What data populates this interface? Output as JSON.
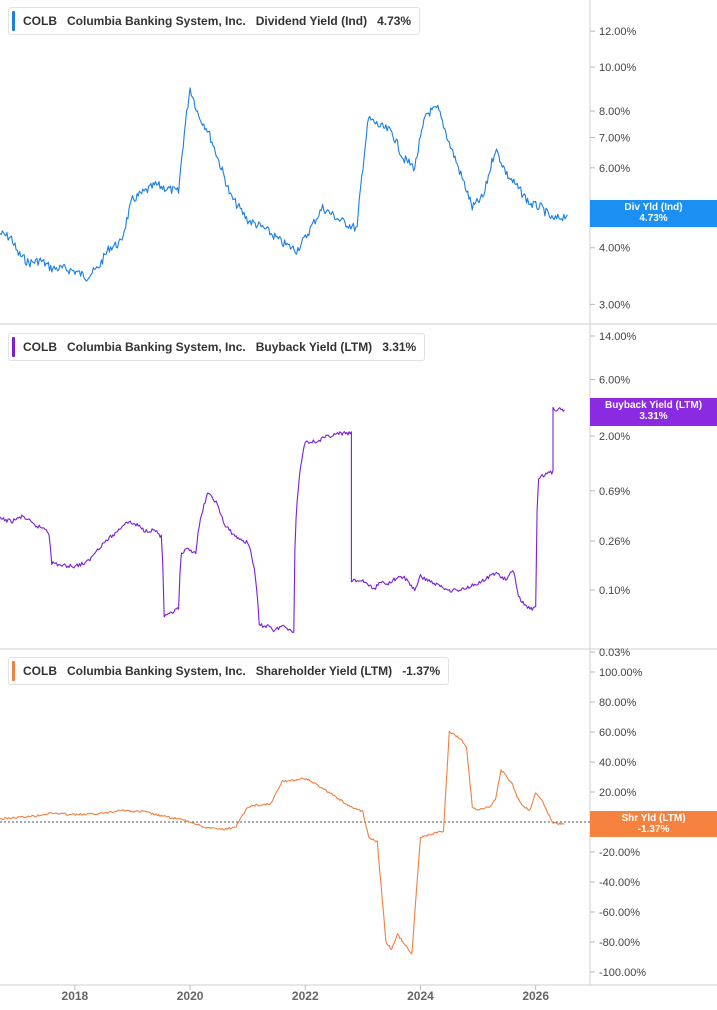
{
  "panels": [
    {
      "ticker": "COLB",
      "company": "Columbia Banking System, Inc.",
      "metric": "Dividend Yield (Ind)",
      "value": "4.73%",
      "tag_title": "Div Yld (Ind)",
      "tag_value": "4.73%",
      "color": "#1a7fe0",
      "tag_color": "#1b8ff2"
    },
    {
      "ticker": "COLB",
      "company": "Columbia Banking System, Inc.",
      "metric": "Buyback Yield (LTM)",
      "value": "3.31%",
      "tag_title": "Buyback Yield (LTM)",
      "tag_value": "3.31%",
      "color": "#7a1fd6",
      "tag_color": "#8a2be2"
    },
    {
      "ticker": "COLB",
      "company": "Columbia Banking System, Inc.",
      "metric": "Shareholder Yield (LTM)",
      "value": "-1.37%",
      "tag_title": "Shr Yld (LTM)",
      "tag_value": "-1.37%",
      "color": "#f08040",
      "tag_color": "#f5823f"
    }
  ],
  "chart_data": [
    {
      "type": "line",
      "title": "Dividend Yield (Ind)",
      "y_scale": "log",
      "ylim": [
        2.8,
        13.5
      ],
      "y_ticks": [
        "12.00%",
        "10.00%",
        "8.00%",
        "7.00%",
        "6.00%",
        "5.00%",
        "4.00%",
        "3.00%"
      ],
      "y_tick_values": [
        12,
        10,
        8,
        7,
        6,
        5,
        4,
        3
      ],
      "x": [
        2016.7,
        2016.9,
        2017.0,
        2017.2,
        2017.4,
        2017.6,
        2017.8,
        2018.0,
        2018.2,
        2018.4,
        2018.6,
        2018.8,
        2019.0,
        2019.2,
        2019.4,
        2019.6,
        2019.8,
        2020.0,
        2020.15,
        2020.3,
        2020.5,
        2020.7,
        2021.0,
        2021.3,
        2021.6,
        2021.85,
        2022.0,
        2022.3,
        2022.6,
        2022.9,
        2023.1,
        2023.3,
        2023.5,
        2023.7,
        2023.9,
        2024.1,
        2024.3,
        2024.5,
        2024.7,
        2024.9,
        2025.1,
        2025.3,
        2025.5,
        2025.7,
        2025.9,
        2026.1,
        2026.3,
        2026.55
      ],
      "y": [
        4.3,
        4.2,
        3.9,
        3.7,
        3.75,
        3.6,
        3.6,
        3.55,
        3.45,
        3.6,
        4.0,
        4.1,
        5.1,
        5.3,
        5.5,
        5.4,
        5.3,
        9.0,
        7.8,
        7.3,
        6.2,
        5.2,
        4.6,
        4.4,
        4.1,
        3.95,
        4.2,
        4.9,
        4.6,
        4.4,
        7.7,
        7.4,
        7.2,
        6.3,
        6.0,
        7.9,
        8.1,
        6.8,
        5.8,
        4.9,
        5.2,
        6.6,
        5.8,
        5.4,
        5.0,
        4.9,
        4.6,
        4.73
      ]
    },
    {
      "type": "line",
      "title": "Buyback Yield (LTM)",
      "y_scale": "log",
      "ylim": [
        0.03,
        14.0
      ],
      "y_ticks": [
        "14.00%",
        "6.00%",
        "2.00%",
        "0.69%",
        "0.26%",
        "0.10%",
        "0.03%"
      ],
      "y_tick_values": [
        14,
        6,
        2,
        0.69,
        0.26,
        0.1,
        0.03
      ],
      "x": [
        2016.7,
        2016.9,
        2017.1,
        2017.3,
        2017.5,
        2017.55,
        2017.6,
        2017.8,
        2018.0,
        2018.2,
        2018.3,
        2018.35,
        2018.5,
        2018.7,
        2018.9,
        2019.1,
        2019.2,
        2019.4,
        2019.5,
        2019.55,
        2019.6,
        2019.8,
        2019.85,
        2019.95,
        2020.1,
        2020.3,
        2020.4,
        2020.45,
        2020.6,
        2020.8,
        2021.0,
        2021.05,
        2021.2,
        2021.4,
        2021.45,
        2021.6,
        2021.8,
        2022.0,
        2022.2,
        2022.4,
        2022.6,
        2022.8,
        2022.8,
        2023.0,
        2023.2,
        2023.3,
        2023.4,
        2023.5,
        2023.7,
        2023.9,
        2024.0,
        2024.3,
        2024.5,
        2024.7,
        2024.9,
        2025.1,
        2025.3,
        2025.5,
        2025.6,
        2025.7,
        2025.8,
        2025.9,
        2026.0,
        2026.05,
        2026.3,
        2026.3,
        2026.5
      ],
      "y": [
        0.4,
        0.38,
        0.42,
        0.35,
        0.33,
        0.3,
        0.17,
        0.16,
        0.16,
        0.17,
        0.19,
        0.21,
        0.25,
        0.3,
        0.38,
        0.35,
        0.32,
        0.32,
        0.28,
        0.06,
        0.06,
        0.07,
        0.2,
        0.22,
        0.21,
        0.65,
        0.6,
        0.55,
        0.35,
        0.28,
        0.25,
        0.22,
        0.05,
        0.05,
        0.045,
        0.05,
        0.045,
        1.8,
        1.8,
        2.0,
        2.1,
        2.1,
        0.12,
        0.12,
        0.1,
        0.12,
        0.11,
        0.12,
        0.13,
        0.1,
        0.13,
        0.11,
        0.1,
        0.1,
        0.11,
        0.12,
        0.14,
        0.12,
        0.15,
        0.09,
        0.075,
        0.07,
        0.07,
        0.9,
        1.0,
        3.4,
        3.31
      ]
    },
    {
      "type": "line",
      "title": "Shareholder Yield (LTM)",
      "ylim": [
        -100,
        100
      ],
      "y_ticks": [
        "100.00%",
        "80.00%",
        "60.00%",
        "40.00%",
        "20.00%",
        "0.00%",
        "-20.00%",
        "-40.00%",
        "-60.00%",
        "-80.00%",
        "-100.00%"
      ],
      "y_tick_values": [
        100,
        80,
        60,
        40,
        20,
        0,
        -20,
        -40,
        -60,
        -80,
        -100
      ],
      "reference_line": 0,
      "x": [
        2016.7,
        2017.0,
        2017.3,
        2017.6,
        2017.9,
        2018.2,
        2018.5,
        2018.8,
        2019.0,
        2019.2,
        2019.5,
        2019.8,
        2020.0,
        2020.3,
        2020.6,
        2020.8,
        2021.0,
        2021.1,
        2021.4,
        2021.6,
        2021.8,
        2022.0,
        2022.2,
        2022.4,
        2022.6,
        2022.7,
        2022.8,
        2023.0,
        2023.1,
        2023.2,
        2023.25,
        2023.4,
        2023.5,
        2023.6,
        2023.7,
        2023.8,
        2023.85,
        2024.0,
        2024.2,
        2024.3,
        2024.4,
        2024.5,
        2024.6,
        2024.7,
        2024.8,
        2024.9,
        2025.0,
        2025.2,
        2025.3,
        2025.4,
        2025.5,
        2025.6,
        2025.7,
        2025.8,
        2025.9,
        2026.0,
        2026.1,
        2026.3,
        2026.5
      ],
      "y": [
        2,
        3,
        4,
        6,
        5,
        5,
        6,
        8,
        7,
        7,
        4,
        2,
        0,
        -4,
        -5,
        -3,
        10,
        11,
        12,
        27,
        28,
        29,
        25,
        20,
        15,
        12,
        10,
        7,
        -10,
        -12,
        -13,
        -80,
        -85,
        -75,
        -80,
        -85,
        -88,
        -10,
        -8,
        -7,
        -6,
        60,
        58,
        55,
        50,
        10,
        8,
        10,
        15,
        35,
        30,
        25,
        15,
        10,
        8,
        20,
        15,
        -1,
        -1.37
      ]
    }
  ],
  "x_axis": {
    "ticks": [
      "2018",
      "2020",
      "2022",
      "2024",
      "2026"
    ],
    "tick_values": [
      2018,
      2020,
      2022,
      2024,
      2026
    ],
    "range": [
      2016.7,
      2026.7
    ]
  }
}
